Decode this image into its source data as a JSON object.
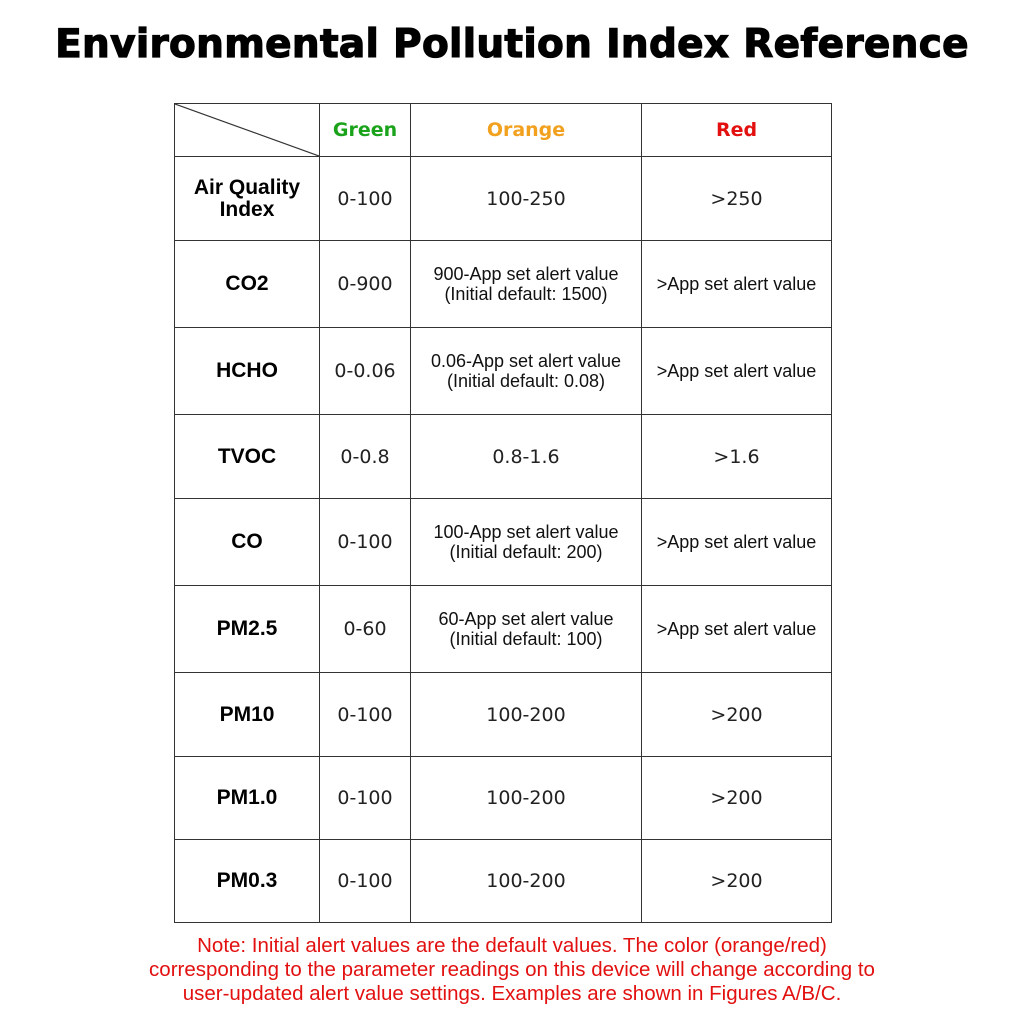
{
  "title": "Environmental Pollution Index Reference",
  "colors": {
    "green": "#1aa31a",
    "orange": "#f2a11f",
    "red": "#e31010"
  },
  "headers": {
    "green": "Green",
    "orange": "Orange",
    "red": "Red"
  },
  "rows": [
    {
      "label": [
        "Air Quality",
        "Index"
      ],
      "green": "0-100",
      "orange": [
        "100-250"
      ],
      "red": ">250"
    },
    {
      "label": [
        "CO2"
      ],
      "green": "0-900",
      "orange": [
        "900-App set alert value",
        "(Initial default: 1500)"
      ],
      "red": ">App set alert value"
    },
    {
      "label": [
        "HCHO"
      ],
      "green": "0-0.06",
      "orange": [
        "0.06-App set alert value",
        "(Initial default: 0.08)"
      ],
      "red": ">App set alert value"
    },
    {
      "label": [
        "TVOC"
      ],
      "green": "0-0.8",
      "orange": [
        "0.8-1.6"
      ],
      "red": ">1.6"
    },
    {
      "label": [
        "CO"
      ],
      "green": "0-100",
      "orange": [
        "100-App set alert value",
        "(Initial default: 200)"
      ],
      "red": ">App set alert value"
    },
    {
      "label": [
        "PM2.5"
      ],
      "green": "0-60",
      "orange": [
        "60-App set alert value",
        "(Initial default: 100)"
      ],
      "red": ">App set alert value"
    },
    {
      "label": [
        "PM10"
      ],
      "green": "0-100",
      "orange": [
        "100-200"
      ],
      "red": ">200"
    },
    {
      "label": [
        "PM1.0"
      ],
      "green": "0-100",
      "orange": [
        "100-200"
      ],
      "red": ">200"
    },
    {
      "label": [
        "PM0.3"
      ],
      "green": "0-100",
      "orange": [
        "100-200"
      ],
      "red": ">200"
    }
  ],
  "note": [
    "Note: Initial alert values are the default values. The color (orange/red)",
    "corresponding to the parameter readings on this device will change according to",
    "user-updated alert value settings. Examples are shown in Figures A/B/C."
  ]
}
